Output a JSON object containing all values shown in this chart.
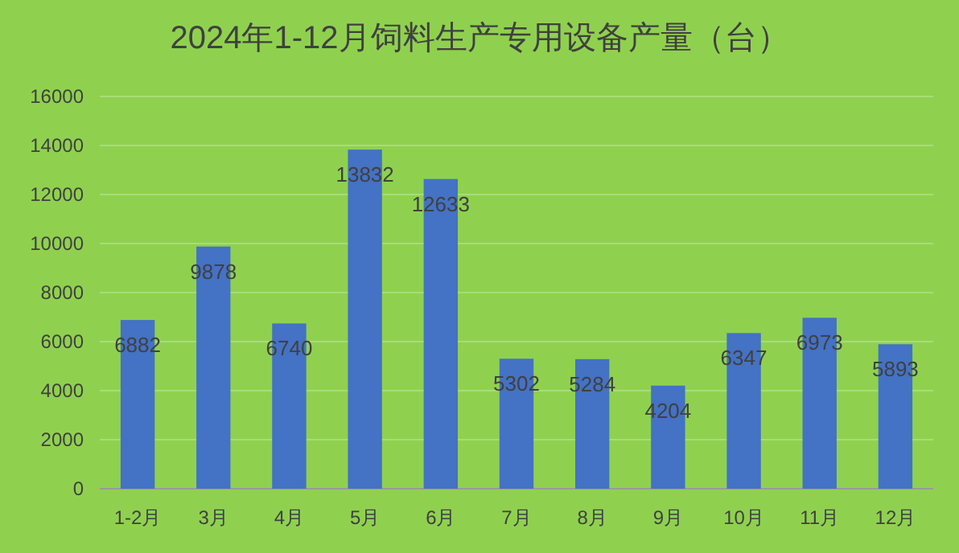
{
  "chart_data": {
    "type": "bar",
    "title": "2024年1-12月饲料生产专用设备产量（台）",
    "categories": [
      "1-2月",
      "3月",
      "4月",
      "5月",
      "6月",
      "7月",
      "8月",
      "9月",
      "10月",
      "11月",
      "12月"
    ],
    "values": [
      6882,
      9878,
      6740,
      13832,
      12633,
      5302,
      5284,
      4204,
      6347,
      6973,
      5893
    ],
    "color": "#4472c4",
    "data_labels": true,
    "ylim": [
      0,
      16000
    ],
    "yticks": [
      0,
      2000,
      4000,
      6000,
      8000,
      10000,
      12000,
      14000,
      16000
    ],
    "grid": "y"
  }
}
